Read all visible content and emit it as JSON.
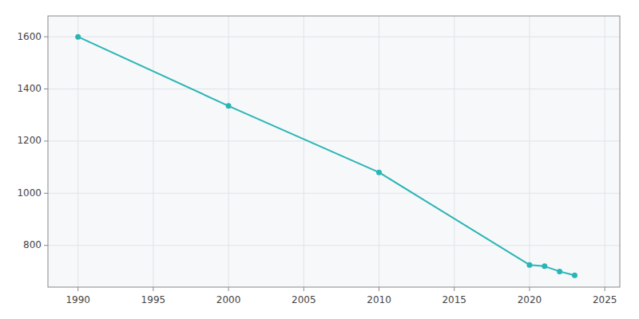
{
  "chart_data": {
    "type": "line",
    "x": [
      1990,
      2000,
      2010,
      2020,
      2021,
      2022,
      2023
    ],
    "values": [
      1600,
      1335,
      1080,
      725,
      720,
      700,
      685
    ],
    "color": "#2ab5b5",
    "marker": "circle",
    "xlim": [
      1988,
      2026
    ],
    "ylim": [
      640,
      1680
    ],
    "xticks": [
      1990,
      1995,
      2000,
      2005,
      2010,
      2015,
      2020,
      2025
    ],
    "yticks": [
      800,
      1000,
      1200,
      1400,
      1600
    ],
    "grid": true
  }
}
